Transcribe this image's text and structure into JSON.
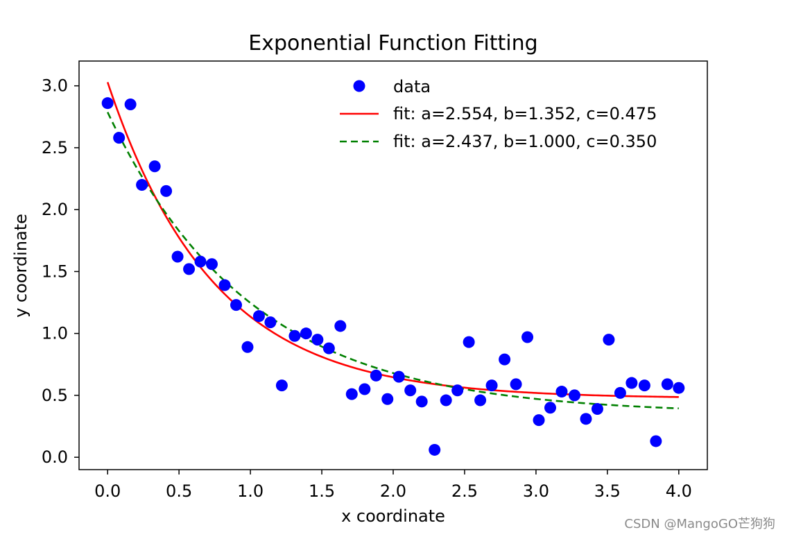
{
  "chart_data": {
    "type": "scatter",
    "title": "Exponential Function Fitting",
    "xlabel": "x coordinate",
    "ylabel": "y coordinate",
    "xlim": [
      -0.2,
      4.2
    ],
    "ylim": [
      -0.1,
      3.2
    ],
    "x_ticks": [
      0.0,
      0.5,
      1.0,
      1.5,
      2.0,
      2.5,
      3.0,
      3.5,
      4.0
    ],
    "x_tick_labels": [
      "0.0",
      "0.5",
      "1.0",
      "1.5",
      "2.0",
      "2.5",
      "3.0",
      "3.5",
      "4.0"
    ],
    "y_ticks": [
      0.0,
      0.5,
      1.0,
      1.5,
      2.0,
      2.5,
      3.0
    ],
    "y_tick_labels": [
      "0.0",
      "0.5",
      "1.0",
      "1.5",
      "2.0",
      "2.5",
      "3.0"
    ],
    "grid": false,
    "legend_position": "top-right",
    "series": [
      {
        "name": "data",
        "kind": "points",
        "color": "#0000ff",
        "x": [
          0.0,
          0.08,
          0.16,
          0.24,
          0.33,
          0.41,
          0.49,
          0.57,
          0.65,
          0.73,
          0.82,
          0.9,
          0.98,
          1.06,
          1.14,
          1.22,
          1.31,
          1.39,
          1.47,
          1.55,
          1.63,
          1.71,
          1.8,
          1.88,
          1.96,
          2.04,
          2.12,
          2.2,
          2.29,
          2.37,
          2.45,
          2.53,
          2.61,
          2.69,
          2.78,
          2.86,
          2.94,
          3.02,
          3.1,
          3.18,
          3.27,
          3.35,
          3.43,
          3.51,
          3.59,
          3.67,
          3.76,
          3.84,
          3.92,
          4.0
        ],
        "y": [
          2.86,
          2.58,
          2.85,
          2.2,
          2.35,
          2.15,
          1.62,
          1.52,
          1.58,
          1.56,
          1.39,
          1.23,
          0.89,
          1.14,
          1.09,
          0.58,
          0.98,
          1.0,
          0.95,
          0.88,
          1.06,
          0.51,
          0.55,
          0.66,
          0.47,
          0.65,
          0.54,
          0.45,
          0.06,
          0.46,
          0.54,
          0.93,
          0.46,
          0.58,
          0.79,
          0.59,
          0.97,
          0.3,
          0.4,
          0.53,
          0.5,
          0.31,
          0.39,
          0.95,
          0.52,
          0.6,
          0.58,
          0.13,
          0.59,
          0.56
        ]
      },
      {
        "name": "fit: a=2.554, b=1.352, c=0.475",
        "kind": "line",
        "color": "#ff0000",
        "dash": "solid",
        "a": 2.554,
        "b": 1.352,
        "c": 0.475
      },
      {
        "name": "fit: a=2.437, b=1.000, c=0.350",
        "kind": "line",
        "color": "#008000",
        "dash": "dashed",
        "a": 2.437,
        "b": 1.0,
        "c": 0.35
      }
    ]
  },
  "watermark": "CSDN @MangoGO芒狗狗"
}
